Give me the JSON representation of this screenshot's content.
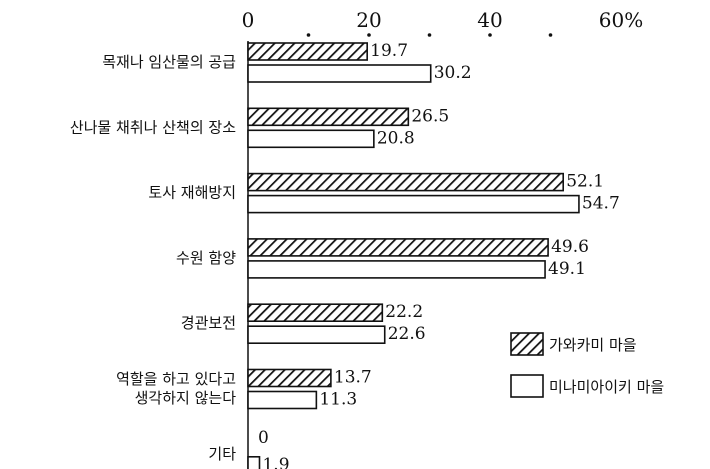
{
  "chart_data": {
    "type": "bar",
    "orientation": "horizontal",
    "x_ticks": [
      "0",
      "20",
      "40",
      "60%"
    ],
    "xlim": [
      0,
      60
    ],
    "grid": false,
    "legend_position": "right",
    "categories": [
      [
        "목재나 임산물의 공급"
      ],
      [
        "산나물 채취나 산책의 장소"
      ],
      [
        "토사 재해방지"
      ],
      [
        "수원 함양"
      ],
      [
        "경관보전"
      ],
      [
        "역할을 하고 있다고",
        "생각하지 않는다"
      ],
      [
        "기타"
      ]
    ],
    "series": [
      {
        "name": "가와카미 마을",
        "pattern": "hatched",
        "values": [
          19.7,
          26.5,
          52.1,
          49.6,
          22.2,
          13.7,
          0
        ]
      },
      {
        "name": "미나미아이키 마을",
        "pattern": "open",
        "values": [
          30.2,
          20.8,
          54.7,
          49.1,
          22.6,
          11.3,
          1.9
        ]
      }
    ]
  },
  "colors": {
    "ink": "#111111",
    "background": "#ffffff"
  }
}
